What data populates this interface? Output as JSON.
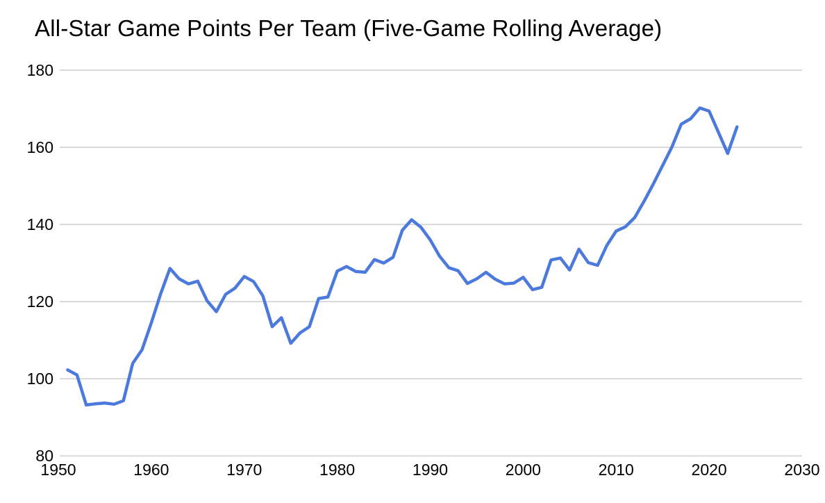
{
  "page": {
    "background_color": "#ffffff",
    "text_color": "#000000"
  },
  "chart_data": {
    "type": "line",
    "title": "All-Star Game Points Per Team (Five-Game Rolling Average)",
    "series_name": "Points per team (five-game rolling average)",
    "x": [
      1951,
      1952,
      1953,
      1954,
      1955,
      1956,
      1957,
      1958,
      1959,
      1960,
      1961,
      1962,
      1963,
      1964,
      1965,
      1966,
      1967,
      1968,
      1969,
      1970,
      1971,
      1972,
      1973,
      1974,
      1975,
      1976,
      1977,
      1978,
      1979,
      1980,
      1981,
      1982,
      1983,
      1984,
      1985,
      1986,
      1987,
      1988,
      1989,
      1990,
      1991,
      1992,
      1993,
      1994,
      1995,
      1996,
      1997,
      1998,
      1999,
      2000,
      2001,
      2002,
      2003,
      2004,
      2005,
      2006,
      2007,
      2008,
      2009,
      2010,
      2011,
      2012,
      2013,
      2014,
      2015,
      2016,
      2017,
      2018,
      2019,
      2020,
      2021,
      2022,
      2023
    ],
    "values": [
      102.3,
      101.0,
      93.2,
      93.5,
      93.7,
      93.4,
      94.3,
      104.0,
      107.5,
      114.5,
      122.0,
      128.6,
      125.9,
      124.6,
      125.3,
      120.2,
      117.4,
      121.9,
      123.5,
      126.5,
      125.2,
      121.5,
      113.5,
      115.8,
      109.2,
      111.9,
      113.5,
      120.8,
      121.2,
      127.9,
      129.1,
      127.8,
      127.6,
      130.9,
      130.0,
      131.5,
      138.5,
      141.2,
      139.3,
      136.0,
      131.8,
      128.8,
      128.0,
      124.7,
      125.9,
      127.6,
      125.8,
      124.6,
      124.8,
      126.3,
      123.1,
      123.7,
      130.8,
      131.3,
      128.2,
      133.6,
      130.1,
      129.4,
      134.6,
      138.3,
      139.4,
      141.8,
      146.0,
      150.5,
      155.3,
      160.1,
      166.0,
      167.4,
      170.2,
      169.4,
      163.9,
      158.4,
      165.3
    ],
    "xlabel": "",
    "ylabel": "",
    "xlim": [
      1950,
      2030
    ],
    "ylim": [
      80,
      180
    ],
    "x_ticks": [
      1950,
      1960,
      1970,
      1980,
      1990,
      2000,
      2010,
      2020,
      2030
    ],
    "y_ticks": [
      80,
      100,
      120,
      140,
      160,
      180
    ],
    "grid": "horizontal",
    "legend_position": "none",
    "line_color": "#4b79dc",
    "gridline_color": "#d9d9d9",
    "tick_label_color": "#000000",
    "line_width": 4.5,
    "tick_font_size": 23
  }
}
